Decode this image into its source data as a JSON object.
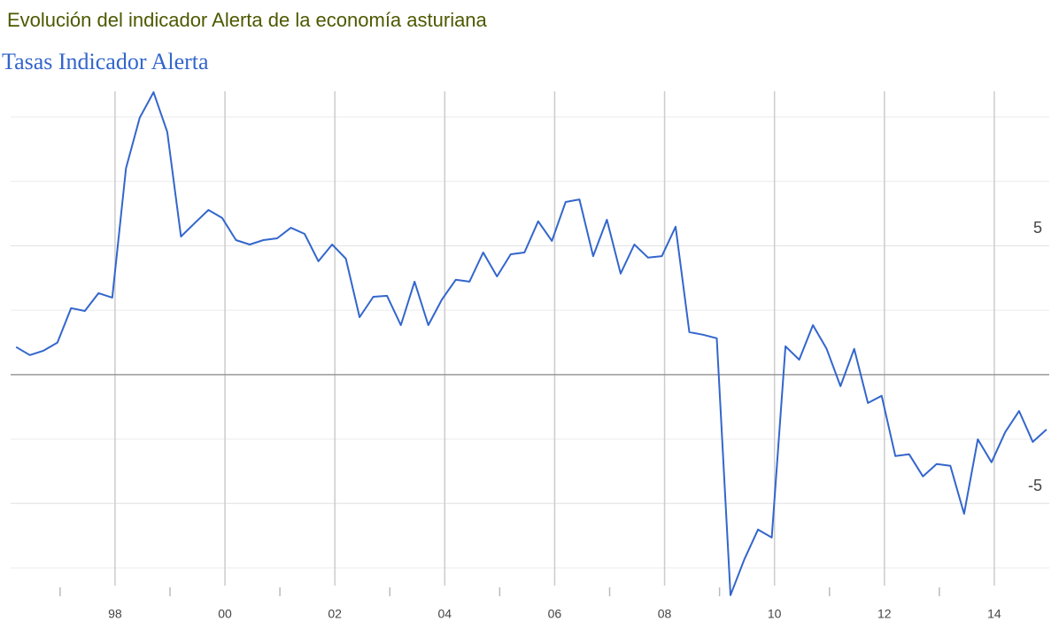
{
  "chart_data": {
    "type": "line",
    "title": "Evolución del indicador Alerta de la economía asturiana",
    "subtitle": "Tasas Indicador Alerta",
    "x": [
      1996.2,
      1996.45,
      1996.7,
      1996.95,
      1997.2,
      1997.45,
      1997.7,
      1997.95,
      1998.2,
      1998.45,
      1998.7,
      1998.95,
      1999.2,
      1999.45,
      1999.7,
      1999.95,
      2000.2,
      2000.45,
      2000.7,
      2000.95,
      2001.2,
      2001.45,
      2001.7,
      2001.95,
      2002.2,
      2002.45,
      2002.7,
      2002.95,
      2003.2,
      2003.45,
      2003.7,
      2003.95,
      2004.2,
      2004.45,
      2004.7,
      2004.95,
      2005.2,
      2005.45,
      2005.7,
      2005.95,
      2006.2,
      2006.45,
      2006.7,
      2006.95,
      2007.2,
      2007.45,
      2007.7,
      2007.95,
      2008.2,
      2008.45,
      2008.7,
      2008.95,
      2009.2,
      2009.45,
      2009.7,
      2009.95,
      2010.2,
      2010.45,
      2010.7,
      2010.95,
      2011.2,
      2011.45,
      2011.7,
      2011.95,
      2012.2,
      2012.45,
      2012.7,
      2012.95,
      2013.2,
      2013.45,
      2013.7,
      2013.95,
      2014.2,
      2014.45,
      2014.7,
      2014.95
    ],
    "series": [
      {
        "color": "#3366cc",
        "values": [
          1.07,
          0.76,
          0.93,
          1.24,
          2.58,
          2.47,
          3.16,
          2.99,
          8.01,
          9.97,
          10.96,
          9.42,
          5.36,
          5.88,
          6.39,
          6.08,
          5.22,
          5.05,
          5.22,
          5.29,
          5.7,
          5.46,
          4.4,
          5.05,
          4.5,
          2.23,
          3.02,
          3.06,
          1.92,
          3.61,
          1.92,
          2.92,
          3.68,
          3.61,
          4.74,
          3.81,
          4.67,
          4.74,
          5.95,
          5.19,
          6.7,
          6.8,
          4.6,
          6.01,
          3.92,
          5.05,
          4.54,
          4.6,
          5.74,
          1.65,
          1.55,
          1.41,
          -8.56,
          -7.18,
          -6.01,
          -6.32,
          1.1,
          0.58,
          1.92,
          1.0,
          -0.45,
          1.0,
          -1.1,
          -0.82,
          -3.16,
          -3.09,
          -3.95,
          -3.47,
          -3.54,
          -5.4,
          -2.51,
          -3.4,
          -2.23,
          -1.41,
          -2.61,
          -2.13
        ]
      }
    ],
    "xlim": [
      1996.1,
      2015.0
    ],
    "xticks": [
      {
        "value": 1998,
        "label": "98"
      },
      {
        "value": 2000,
        "label": "00"
      },
      {
        "value": 2002,
        "label": "02"
      },
      {
        "value": 2004,
        "label": "04"
      },
      {
        "value": 2006,
        "label": "06"
      },
      {
        "value": 2008,
        "label": "08"
      },
      {
        "value": 2010,
        "label": "10"
      },
      {
        "value": 2012,
        "label": "12"
      },
      {
        "value": 2014,
        "label": "14"
      }
    ],
    "minor_xticks": [
      1997,
      1999,
      2001,
      2003,
      2005,
      2007,
      2009,
      2011,
      2013
    ],
    "ylim": [
      -8.6,
      11.1
    ],
    "yticks": [
      -5,
      5
    ],
    "minor_yticks": [
      -7.5,
      -2.5,
      2.5,
      7.5,
      10
    ],
    "grid": true
  }
}
